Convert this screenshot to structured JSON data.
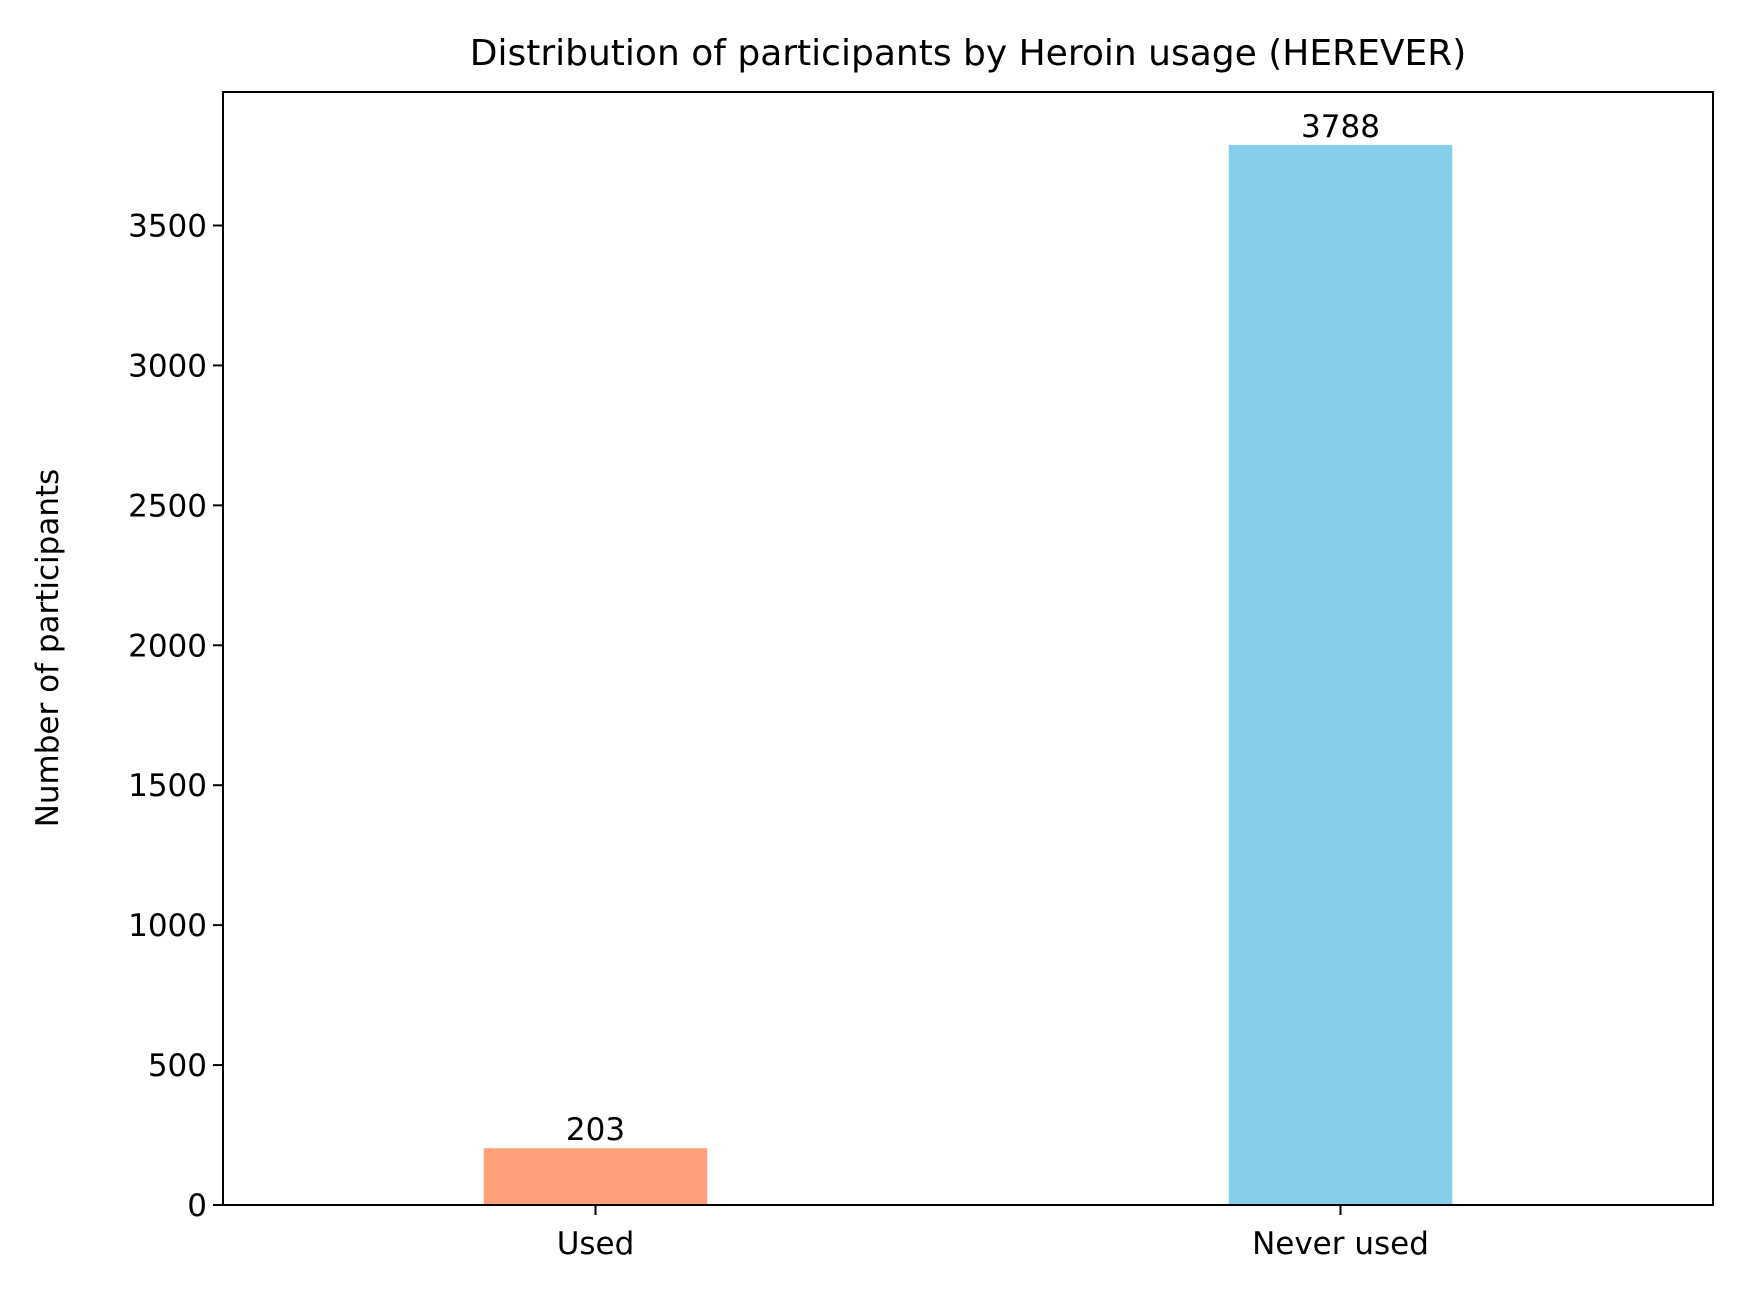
{
  "chart_data": {
    "type": "bar",
    "title": "Distribution of participants by Heroin usage (HEREVER)",
    "xlabel": "",
    "ylabel": "Number of participants",
    "categories": [
      "Used",
      "Never used"
    ],
    "values": [
      203,
      3788
    ],
    "data_labels": [
      "203",
      "3788"
    ],
    "colors": [
      "#FFA07A",
      "#87CEEB"
    ],
    "ylim": [
      0,
      3977
    ],
    "yticks": [
      0,
      500,
      1000,
      1500,
      2000,
      2500,
      3000,
      3500
    ],
    "grid": false,
    "legend": "none"
  }
}
